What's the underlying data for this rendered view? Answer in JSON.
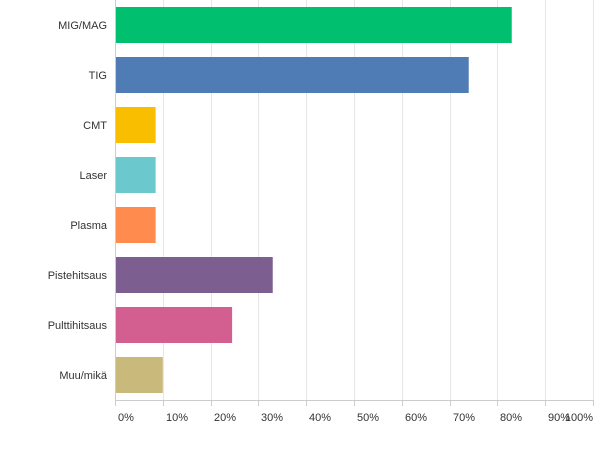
{
  "chart_data": {
    "type": "bar",
    "orientation": "horizontal",
    "categories": [
      "MIG/MAG",
      "TIG",
      "CMT",
      "Laser",
      "Plasma",
      "Pistehitsaus",
      "Pulttihitsaus",
      "Muu/mikä"
    ],
    "values": [
      83,
      74,
      8.5,
      8.5,
      8.5,
      33,
      24.5,
      10
    ],
    "unit": "%",
    "colors": [
      "#00bf6f",
      "#507cb6",
      "#f9be00",
      "#6bc8cd",
      "#ff8b4f",
      "#7d5e90",
      "#d25f90",
      "#c9b97a"
    ],
    "xlim": [
      0,
      100
    ],
    "xticks": [
      "0%",
      "10%",
      "20%",
      "30%",
      "40%",
      "50%",
      "60%",
      "70%",
      "80%",
      "90%",
      "100%"
    ],
    "grid": true,
    "legend": "none",
    "title": "",
    "xlabel": "",
    "ylabel": ""
  }
}
